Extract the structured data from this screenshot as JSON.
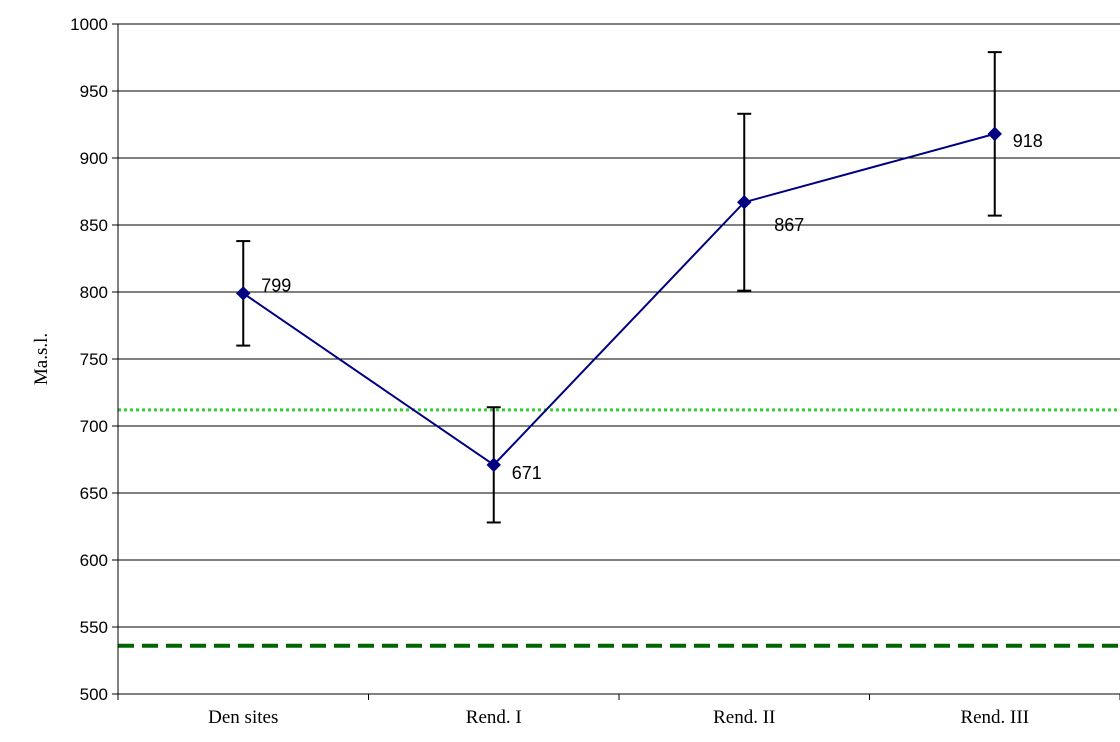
{
  "chart_data": {
    "type": "line",
    "title": "",
    "xlabel": "",
    "ylabel": "Ma.s.l.",
    "ylim": [
      500,
      1000
    ],
    "yticks": [
      500,
      550,
      600,
      650,
      700,
      750,
      800,
      850,
      900,
      950,
      1000
    ],
    "grid": true,
    "categories": [
      "Den sites",
      "Rend. I",
      "Rend. II",
      "Rend. III"
    ],
    "series": [
      {
        "values": [
          799,
          671,
          867,
          918
        ],
        "error_low": [
          760,
          628,
          801,
          857
        ],
        "error_high": [
          838,
          714,
          933,
          979
        ],
        "data_labels": [
          "799",
          "671",
          "867",
          "918"
        ],
        "color": "#000080",
        "marker": "diamond"
      }
    ],
    "reference_lines": [
      {
        "y": 712,
        "style": "dotted",
        "color": "#33cc33"
      },
      {
        "y": 536,
        "style": "dashed",
        "color": "#006600"
      }
    ]
  }
}
